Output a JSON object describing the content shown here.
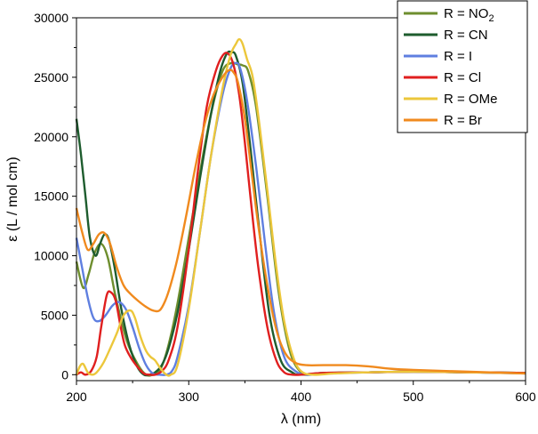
{
  "chart_data": {
    "type": "line",
    "title": "",
    "xlabel": "λ (nm)",
    "ylabel": "ε (L / mol cm)",
    "xlim": [
      200,
      600
    ],
    "ylim": [
      -500,
      30000
    ],
    "x_ticks": [
      200,
      300,
      400,
      500,
      600
    ],
    "y_ticks": [
      0,
      5000,
      10000,
      15000,
      20000,
      25000,
      30000
    ],
    "x_tick_labels": [
      "200",
      "300",
      "400",
      "500",
      "600"
    ],
    "y_tick_labels": [
      "0",
      "5000",
      "10000",
      "15000",
      "20000",
      "25000",
      "30000"
    ],
    "grid": false,
    "legend_position": "top-right",
    "series": [
      {
        "name": "R = NO",
        "name_subscript": "2",
        "color": "#6e8e2e",
        "x": [
          200,
          206,
          211,
          216,
          222,
          228,
          235,
          245,
          255,
          262,
          268,
          275,
          282,
          290,
          300,
          310,
          320,
          330,
          338,
          343,
          348,
          353,
          360,
          370,
          380,
          390,
          400,
          410,
          430,
          460,
          500,
          550,
          600
        ],
        "y": [
          9500,
          7300,
          8500,
          10200,
          11000,
          9800,
          6500,
          2800,
          800,
          0,
          0,
          500,
          2500,
          6000,
          11500,
          17000,
          22000,
          25500,
          26200,
          26100,
          26000,
          25500,
          22500,
          15000,
          7000,
          2000,
          200,
          0,
          150,
          200,
          250,
          200,
          150
        ]
      },
      {
        "name": "R = CN",
        "name_subscript": "",
        "color": "#1e5c2e",
        "x": [
          200,
          204,
          208,
          212,
          217,
          221,
          225,
          229,
          234,
          240,
          247,
          254,
          260,
          265,
          270,
          276,
          282,
          290,
          300,
          310,
          320,
          328,
          334,
          338,
          342,
          348,
          355,
          363,
          372,
          382,
          392,
          400,
          420,
          460,
          500,
          550,
          600
        ],
        "y": [
          21500,
          18500,
          15000,
          11500,
          10000,
          11000,
          11800,
          11300,
          9000,
          5500,
          2500,
          700,
          0,
          0,
          200,
          800,
          2200,
          5200,
          10500,
          16500,
          22000,
          25500,
          27000,
          27100,
          26800,
          24500,
          19000,
          12000,
          5000,
          1200,
          200,
          0,
          150,
          200,
          250,
          200,
          150
        ]
      },
      {
        "name": "R = I",
        "name_subscript": "",
        "color": "#5f7fe0",
        "x": [
          200,
          205,
          210,
          215,
          220,
          226,
          232,
          238,
          244,
          250,
          256,
          262,
          268,
          274,
          280,
          285,
          290,
          300,
          310,
          320,
          330,
          337,
          342,
          346,
          352,
          360,
          368,
          376,
          385,
          395,
          405,
          420,
          460,
          500,
          550,
          600
        ],
        "y": [
          11500,
          9000,
          6500,
          4800,
          4500,
          5000,
          5800,
          6100,
          5500,
          4000,
          2200,
          800,
          100,
          0,
          0,
          300,
          1500,
          5800,
          12000,
          18500,
          23500,
          25700,
          26200,
          25700,
          23000,
          17500,
          11000,
          5200,
          1500,
          300,
          0,
          100,
          200,
          250,
          200,
          100
        ]
      },
      {
        "name": "R = Cl",
        "name_subscript": "",
        "color": "#e01f1f",
        "x": [
          200,
          204,
          208,
          213,
          218,
          222,
          227,
          231,
          235,
          239,
          243,
          248,
          254,
          260,
          265,
          270,
          276,
          282,
          290,
          300,
          308,
          316,
          324,
          330,
          335,
          340,
          345,
          350,
          356,
          362,
          370,
          378,
          385,
          392,
          400,
          420,
          460,
          500,
          550,
          600
        ],
        "y": [
          0,
          200,
          0,
          300,
          1500,
          4000,
          6700,
          6900,
          6200,
          4200,
          2500,
          1500,
          700,
          100,
          0,
          0,
          300,
          1200,
          4000,
          10500,
          17000,
          22500,
          25500,
          26800,
          27000,
          26000,
          23500,
          19500,
          14000,
          9000,
          4000,
          1200,
          200,
          0,
          0,
          150,
          200,
          250,
          200,
          150
        ]
      },
      {
        "name": "R = OMe",
        "name_subscript": "",
        "color": "#ecc73b",
        "x": [
          200,
          203,
          206,
          210,
          214,
          218,
          224,
          230,
          236,
          242,
          248,
          252,
          257,
          262,
          266,
          270,
          275,
          280,
          284,
          290,
          300,
          310,
          320,
          330,
          337,
          342,
          345,
          348,
          352,
          357,
          363,
          370,
          378,
          385,
          393,
          400,
          410,
          430,
          460,
          500,
          550,
          600
        ],
        "y": [
          0,
          700,
          900,
          200,
          0,
          200,
          1000,
          2200,
          3500,
          5000,
          5400,
          4800,
          3200,
          2000,
          1500,
          1200,
          500,
          0,
          0,
          800,
          5500,
          12000,
          18500,
          24000,
          26800,
          27800,
          28200,
          27800,
          26500,
          25000,
          21000,
          15500,
          9000,
          4500,
          1500,
          300,
          0,
          100,
          200,
          250,
          200,
          100
        ]
      },
      {
        "name": "R = Br",
        "name_subscript": "",
        "color": "#f08a1e",
        "x": [
          200,
          205,
          210,
          215,
          220,
          225,
          230,
          236,
          242,
          248,
          255,
          262,
          268,
          274,
          279,
          284,
          290,
          298,
          306,
          314,
          322,
          330,
          336,
          340,
          344,
          350,
          356,
          362,
          370,
          378,
          386,
          395,
          405,
          420,
          440,
          460,
          480,
          500,
          550,
          600
        ],
        "y": [
          14000,
          12000,
          10500,
          11000,
          11800,
          11900,
          11000,
          9000,
          7500,
          6800,
          6200,
          5700,
          5400,
          5400,
          6200,
          7600,
          9800,
          13500,
          17500,
          21000,
          23500,
          25000,
          25600,
          25400,
          24500,
          21500,
          17000,
          12500,
          7500,
          3800,
          1800,
          1000,
          800,
          800,
          800,
          700,
          500,
          400,
          250,
          100
        ]
      }
    ]
  }
}
